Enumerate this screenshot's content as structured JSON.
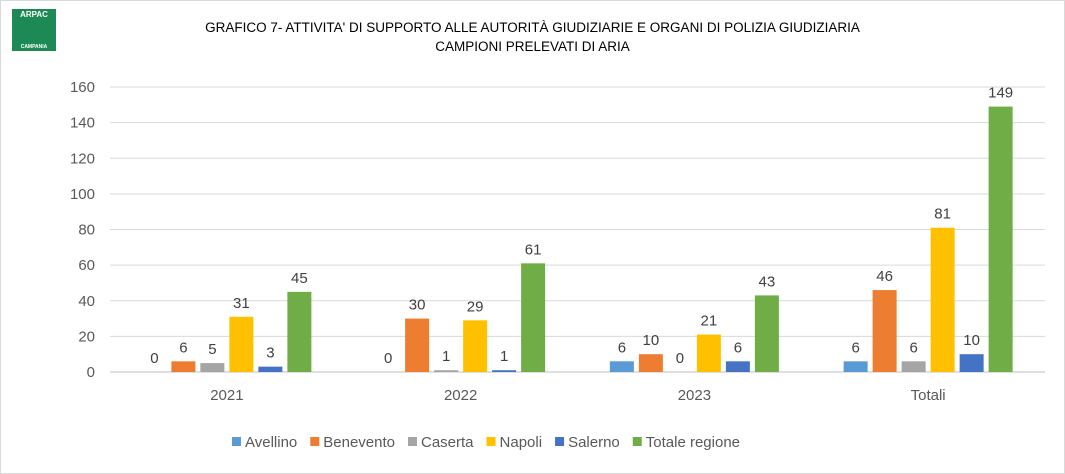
{
  "logo": {
    "top_text": "ARPAC",
    "bottom_text": "CAMPANIA"
  },
  "chart_data": {
    "type": "bar",
    "title_line1": "GRAFICO 7- ATTIVITA' DI SUPPORTO ALLE AUTORITÀ GIUDIZIARIE E ORGANI DI POLIZIA GIUDIZIARIA",
    "title_line2": "CAMPIONI PRELEVATI DI ARIA",
    "categories": [
      "2021",
      "2022",
      "2023",
      "Totali"
    ],
    "ylim": [
      0,
      160
    ],
    "yticks": [
      0,
      20,
      40,
      60,
      80,
      100,
      120,
      140,
      160
    ],
    "grid": true,
    "legend_position": "bottom",
    "series": [
      {
        "name": "Avellino",
        "color": "#5B9BD5",
        "values": [
          0,
          0,
          6,
          6
        ]
      },
      {
        "name": "Benevento",
        "color": "#ED7D31",
        "values": [
          6,
          30,
          10,
          46
        ]
      },
      {
        "name": "Caserta",
        "color": "#A5A5A5",
        "values": [
          5,
          1,
          0,
          6
        ]
      },
      {
        "name": "Napoli",
        "color": "#FFC000",
        "values": [
          31,
          29,
          21,
          81
        ]
      },
      {
        "name": "Salerno",
        "color": "#4472C4",
        "values": [
          3,
          1,
          6,
          10
        ]
      },
      {
        "name": "Totale regione",
        "color": "#70AD47",
        "values": [
          45,
          61,
          43,
          149
        ]
      }
    ]
  }
}
